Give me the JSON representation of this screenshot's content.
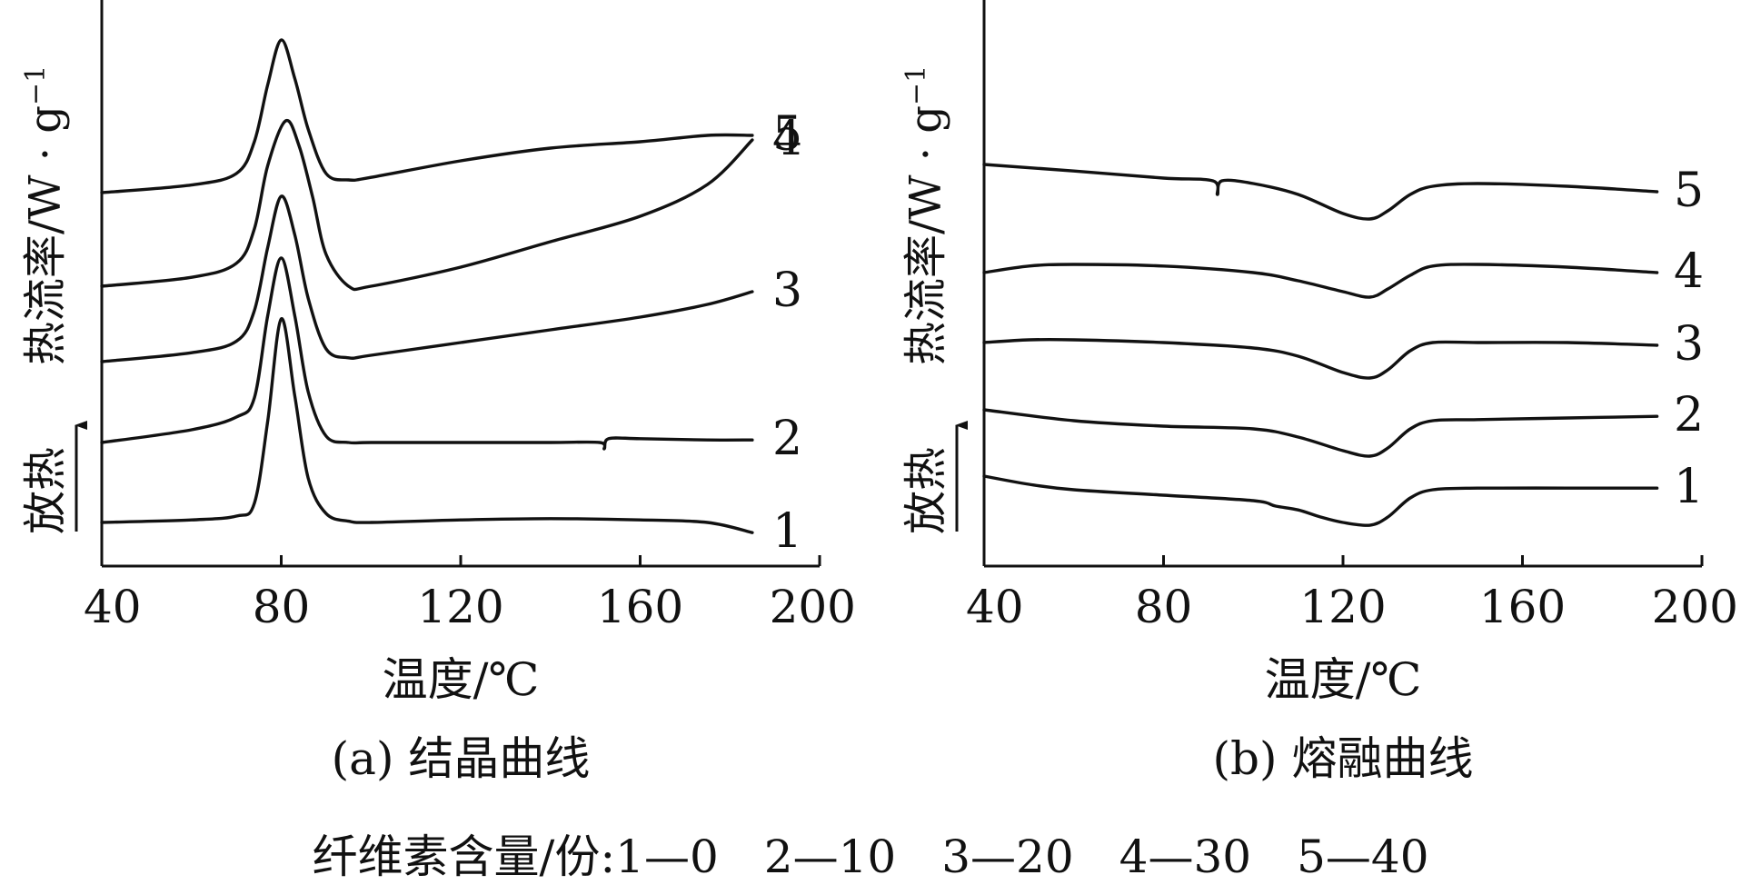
{
  "chart_data": [
    {
      "type": "line",
      "caption": "(a) 结晶曲线",
      "xlabel": "温度/℃",
      "ylabel": "热流率/W · g",
      "ylabel_sup": "−1",
      "direction_label": "放热",
      "xlim": [
        40,
        200
      ],
      "xticks": [
        "40",
        "80",
        "120",
        "160",
        "200"
      ],
      "series": [
        {
          "name": "1",
          "x": [
            40,
            60,
            70,
            74,
            77,
            80,
            83,
            86,
            90,
            95,
            100,
            120,
            140,
            160,
            175,
            185
          ],
          "y": [
            0.0,
            0.02,
            0.05,
            0.15,
            0.8,
            1.6,
            1.0,
            0.35,
            0.07,
            0.01,
            0.0,
            0.02,
            0.03,
            0.02,
            0.0,
            -0.08
          ]
        },
        {
          "name": "2",
          "x": [
            40,
            60,
            70,
            74,
            77,
            80,
            83,
            86,
            90,
            95,
            100,
            120,
            140,
            151,
            152,
            153,
            160,
            175,
            185
          ],
          "y": [
            0.0,
            0.1,
            0.2,
            0.35,
            1.0,
            1.45,
            1.0,
            0.4,
            0.05,
            0.0,
            0.0,
            0.0,
            0.0,
            0.0,
            -0.05,
            0.03,
            0.03,
            0.02,
            0.02
          ]
        },
        {
          "name": "3",
          "x": [
            40,
            60,
            70,
            74,
            77,
            80,
            83,
            86,
            90,
            95,
            100,
            120,
            140,
            160,
            175,
            185
          ],
          "y": [
            0.0,
            0.07,
            0.16,
            0.4,
            0.9,
            1.3,
            1.0,
            0.5,
            0.1,
            0.03,
            0.05,
            0.15,
            0.25,
            0.35,
            0.45,
            0.55
          ]
        },
        {
          "name": "4",
          "x": [
            40,
            60,
            70,
            74,
            77,
            81,
            84,
            87,
            90,
            95,
            100,
            120,
            140,
            160,
            175,
            185
          ],
          "y": [
            0.0,
            0.07,
            0.18,
            0.45,
            0.95,
            1.3,
            1.1,
            0.7,
            0.25,
            0.0,
            0.0,
            0.15,
            0.35,
            0.55,
            0.8,
            1.15
          ]
        },
        {
          "name": "5",
          "x": [
            40,
            60,
            70,
            74,
            77,
            80,
            83,
            86,
            90,
            95,
            100,
            120,
            140,
            160,
            175,
            185
          ],
          "y": [
            0.0,
            0.06,
            0.15,
            0.4,
            0.85,
            1.2,
            0.9,
            0.5,
            0.15,
            0.1,
            0.12,
            0.25,
            0.35,
            0.4,
            0.45,
            0.45
          ]
        }
      ]
    },
    {
      "type": "line",
      "caption": "(b) 熔融曲线",
      "xlabel": "温度/℃",
      "ylabel": "热流率/W · g",
      "ylabel_sup": "−1",
      "direction_label": "放热",
      "xlim": [
        40,
        200
      ],
      "xticks": [
        "40",
        "80",
        "120",
        "160",
        "200"
      ],
      "series": [
        {
          "name": "1",
          "x": [
            40,
            50,
            60,
            80,
            100,
            105,
            110,
            115,
            120,
            126,
            130,
            135,
            140,
            150,
            170,
            190
          ],
          "y": [
            0.0,
            -0.15,
            -0.25,
            -0.35,
            -0.45,
            -0.55,
            -0.62,
            -0.75,
            -0.85,
            -0.9,
            -0.75,
            -0.4,
            -0.25,
            -0.22,
            -0.22,
            -0.22
          ]
        },
        {
          "name": "2",
          "x": [
            40,
            60,
            80,
            100,
            110,
            120,
            126,
            130,
            135,
            140,
            150,
            170,
            190
          ],
          "y": [
            0.0,
            -0.2,
            -0.3,
            -0.35,
            -0.5,
            -0.75,
            -0.85,
            -0.7,
            -0.35,
            -0.2,
            -0.18,
            -0.15,
            -0.12
          ]
        },
        {
          "name": "3",
          "x": [
            40,
            50,
            60,
            80,
            100,
            110,
            120,
            126,
            130,
            135,
            140,
            150,
            170,
            190
          ],
          "y": [
            0.0,
            0.05,
            0.05,
            0.0,
            -0.1,
            -0.25,
            -0.55,
            -0.65,
            -0.5,
            -0.15,
            0.0,
            0.0,
            0.0,
            -0.05
          ]
        },
        {
          "name": "4",
          "x": [
            40,
            50,
            60,
            80,
            100,
            110,
            120,
            126,
            130,
            135,
            140,
            150,
            170,
            190
          ],
          "y": [
            0.0,
            0.12,
            0.15,
            0.12,
            0.0,
            -0.15,
            -0.35,
            -0.45,
            -0.3,
            -0.05,
            0.12,
            0.15,
            0.1,
            0.0
          ]
        },
        {
          "name": "5",
          "x": [
            40,
            60,
            80,
            91,
            92,
            93,
            100,
            110,
            120,
            126,
            130,
            135,
            140,
            150,
            170,
            190
          ],
          "y": [
            0.0,
            -0.12,
            -0.25,
            -0.3,
            -0.55,
            -0.3,
            -0.35,
            -0.55,
            -0.9,
            -1.0,
            -0.85,
            -0.55,
            -0.4,
            -0.35,
            -0.4,
            -0.5
          ]
        }
      ]
    }
  ],
  "legend_note": "纤维素含量/份:1—0　2—10　3—20　4—30　5—40"
}
